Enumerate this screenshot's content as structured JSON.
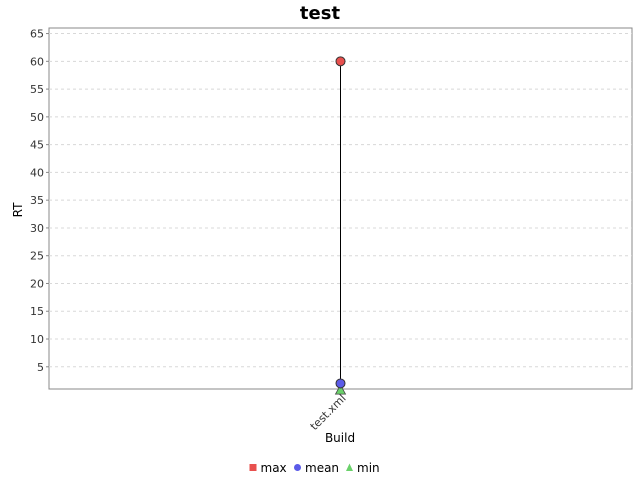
{
  "chart_data": {
    "type": "scatter",
    "title": "test",
    "xlabel": "Build",
    "ylabel": "RT",
    "categories": [
      "test.xml"
    ],
    "ylim": [
      1,
      66
    ],
    "yticks": [
      5,
      10,
      15,
      20,
      25,
      30,
      35,
      40,
      45,
      50,
      55,
      60,
      65
    ],
    "grid": true,
    "legend_position": "bottom",
    "series": [
      {
        "name": "max",
        "values": [
          60
        ],
        "color": "#e8504e",
        "marker": "square",
        "point_marker": "circle"
      },
      {
        "name": "mean",
        "values": [
          2
        ],
        "color": "#5b5be8",
        "marker": "circle",
        "point_marker": "circle"
      },
      {
        "name": "min",
        "values": [
          0.8
        ],
        "color": "#6ad16a",
        "marker": "triangle",
        "point_marker": "triangle"
      }
    ],
    "range_line": {
      "from": "min",
      "to": "max",
      "color": "#000000"
    }
  }
}
